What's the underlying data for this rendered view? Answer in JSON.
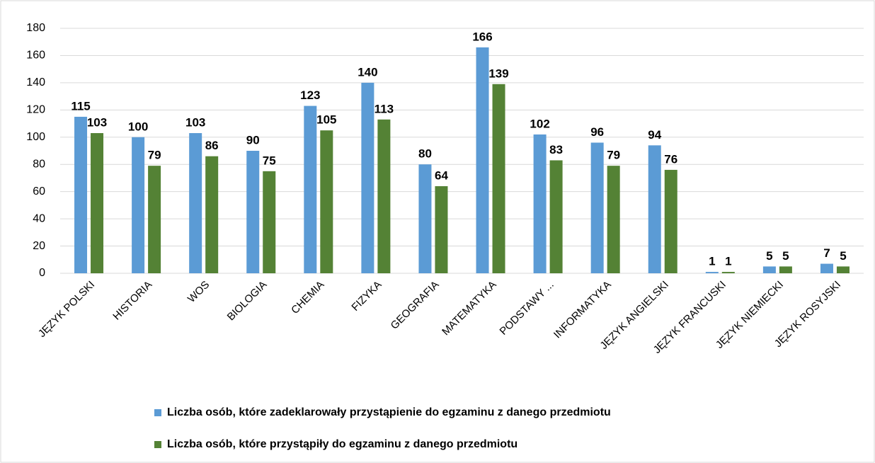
{
  "chart_data": {
    "type": "bar",
    "categories": [
      "JĘZYK POLSKI",
      "HISTORIA",
      "WOS",
      "BIOLOGIA",
      "CHEMIA",
      "FIZYKA",
      "GEOGRAFIA",
      "MATEMATYKA",
      "PODSTAWY ...",
      "INFORMATYKA",
      "JĘZYK ANGIELSKI",
      "JĘZYK FRANCUSKI",
      "JĘZYK NIEMIECKI",
      "JĘZYK ROSYJSKI"
    ],
    "series": [
      {
        "name": "Liczba osób, które zadeklarowały przystąpienie do egzaminu z danego przedmiotu",
        "color": "#5b9bd5",
        "values": [
          115,
          100,
          103,
          90,
          123,
          140,
          80,
          166,
          102,
          96,
          94,
          1,
          5,
          7
        ]
      },
      {
        "name": "Liczba osób, które przystąpiły do egzaminu z danego przedmiotu",
        "color": "#548235",
        "values": [
          103,
          79,
          86,
          75,
          105,
          113,
          64,
          139,
          83,
          79,
          76,
          1,
          5,
          5
        ]
      }
    ],
    "ylim": [
      0,
      180
    ],
    "yticks": [
      0,
      20,
      40,
      60,
      80,
      100,
      120,
      140,
      160,
      180
    ],
    "grid": true,
    "legend": "bottom"
  }
}
